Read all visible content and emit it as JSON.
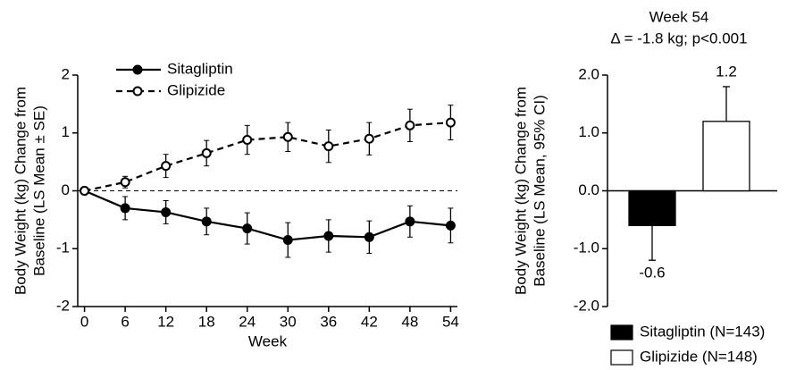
{
  "chart_data": [
    {
      "type": "line",
      "xlabel": "Week",
      "ylabel": [
        "Body Weight (kg) Change from",
        "Baseline  (LS Mean ± SE)"
      ],
      "x": [
        0,
        6,
        12,
        18,
        24,
        30,
        36,
        42,
        48,
        54
      ],
      "xlim": [
        -1,
        55
      ],
      "xticks": [
        0,
        6,
        12,
        18,
        24,
        30,
        36,
        42,
        48,
        54
      ],
      "ylim": [
        -2,
        2
      ],
      "yticks": [
        -2,
        -1,
        0,
        1,
        2
      ],
      "reference_line": 0,
      "series": [
        {
          "name": "Sitagliptin",
          "color": "#000000",
          "dashed": false,
          "marker_fill": "#000000",
          "values": [
            0,
            -0.3,
            -0.37,
            -0.53,
            -0.65,
            -0.85,
            -0.78,
            -0.8,
            -0.53,
            -0.6
          ],
          "errors": [
            0,
            0.2,
            0.2,
            0.23,
            0.27,
            0.3,
            0.28,
            0.28,
            0.27,
            0.3
          ]
        },
        {
          "name": "Glipizide",
          "color": "#000000",
          "dashed": true,
          "marker_fill": "#ffffff",
          "values": [
            0,
            0.15,
            0.43,
            0.65,
            0.88,
            0.93,
            0.77,
            0.9,
            1.13,
            1.18
          ],
          "errors": [
            0,
            0.1,
            0.2,
            0.22,
            0.25,
            0.25,
            0.28,
            0.28,
            0.28,
            0.3
          ]
        }
      ]
    },
    {
      "type": "bar",
      "title": [
        "Week 54",
        "Δ = -1.8 kg; p<0.001"
      ],
      "ylabel": [
        "Body Weight (kg) Change from",
        "Baseline (LS Mean, 95% CI)"
      ],
      "ylim": [
        -2,
        2
      ],
      "yticks": [
        {
          "value": -2,
          "label": "-2.0"
        },
        {
          "value": -1,
          "label": "-1.0"
        },
        {
          "value": 0,
          "label": "0.0"
        },
        {
          "value": 1,
          "label": "1.0"
        },
        {
          "value": 2,
          "label": "2.0"
        }
      ],
      "series": [
        {
          "name": "Sitagliptin (N=143)",
          "color": "#000000",
          "values": [
            -0.6
          ],
          "errors": [
            0.6
          ]
        },
        {
          "name": "Glipizide (N=148)",
          "color": "#ffffff",
          "values": [
            1.2
          ],
          "errors": [
            0.6
          ]
        }
      ]
    }
  ]
}
